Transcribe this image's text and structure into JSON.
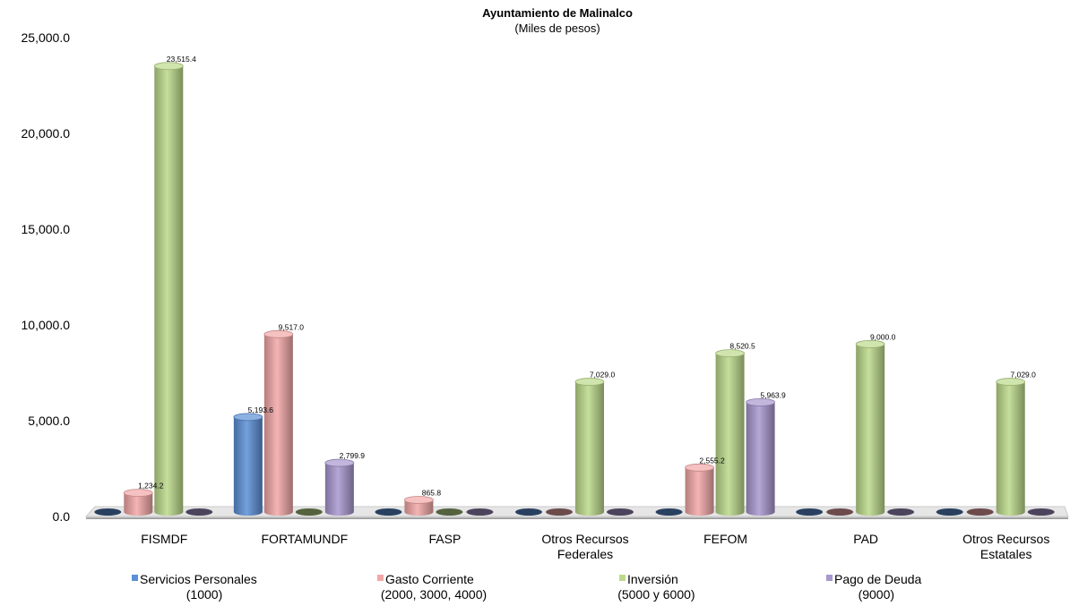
{
  "chart_data": {
    "type": "bar",
    "title": "Ayuntamiento de Malinalco",
    "subtitle": "(Miles de pesos)",
    "xlabel": "",
    "ylabel": "",
    "ylim": [
      0,
      25000
    ],
    "y_ticks": [
      "0.0",
      "5,000.0",
      "10,000.0",
      "15,000.0",
      "20,000.0",
      "25,000.0"
    ],
    "y_tick_values": [
      0,
      5000,
      10000,
      15000,
      20000,
      25000
    ],
    "categories": [
      [
        "FISMDF"
      ],
      [
        "FORTAMUNDF"
      ],
      [
        "FASP"
      ],
      [
        "Otros Recursos",
        "Federales"
      ],
      [
        "FEFOM"
      ],
      [
        "PAD"
      ],
      [
        "Otros Recursos",
        "Estatales"
      ]
    ],
    "series": [
      {
        "name": "Servicios Personales",
        "name2": "(1000)",
        "color": "#5b8fd6",
        "values": [
          0,
          5193.6,
          0,
          0,
          0,
          0,
          0
        ],
        "labels": [
          "",
          "5,193.6",
          "",
          "",
          "",
          "",
          ""
        ]
      },
      {
        "name": "Gasto Corriente",
        "name2": "(2000, 3000, 4000)",
        "color": "#f2a7a7",
        "values": [
          1234.2,
          9517.0,
          865.8,
          0,
          2555.2,
          0,
          0
        ],
        "labels": [
          "1,234.2",
          "9,517.0",
          "865.8",
          "",
          "2,555.2",
          "",
          ""
        ]
      },
      {
        "name": "Inversión",
        "name2": "(5000 y 6000)",
        "color": "#bcd98a",
        "values": [
          23515.4,
          0,
          0,
          7029.0,
          8520.5,
          9000.0,
          7029.0
        ],
        "labels": [
          "23,515.4",
          "",
          "",
          "7,029.0",
          "8,520.5",
          "9,000.0",
          "7,029.0"
        ]
      },
      {
        "name": "Pago de Deuda",
        "name2": "(9000)",
        "color": "#a897cf",
        "values": [
          0,
          2799.9,
          0,
          0,
          5963.9,
          0,
          0
        ],
        "labels": [
          "",
          "2,799.9",
          "",
          "",
          "5,963.9",
          "",
          ""
        ]
      }
    ],
    "grid": false,
    "legend_position": "bottom"
  }
}
